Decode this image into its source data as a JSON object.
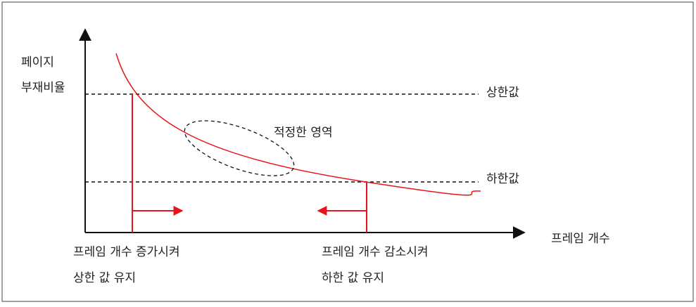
{
  "diagram": {
    "y_axis_label": [
      "페이지",
      "부재비율"
    ],
    "x_axis_label": "프레임 개수",
    "upper_label": "상한값",
    "lower_label": "하한값",
    "region_label": "적정한 영역",
    "left_note": [
      "프레임 개수 증가시켜",
      "상한 값 유지"
    ],
    "right_note": [
      "프레임 개수 감소시켜",
      "하한 값 유지"
    ],
    "colors": {
      "curve": "#e8141c",
      "marker": "#e8141c",
      "axis": "#111111",
      "dashed": "#111111",
      "text": "#222222",
      "border": "#444444"
    }
  }
}
